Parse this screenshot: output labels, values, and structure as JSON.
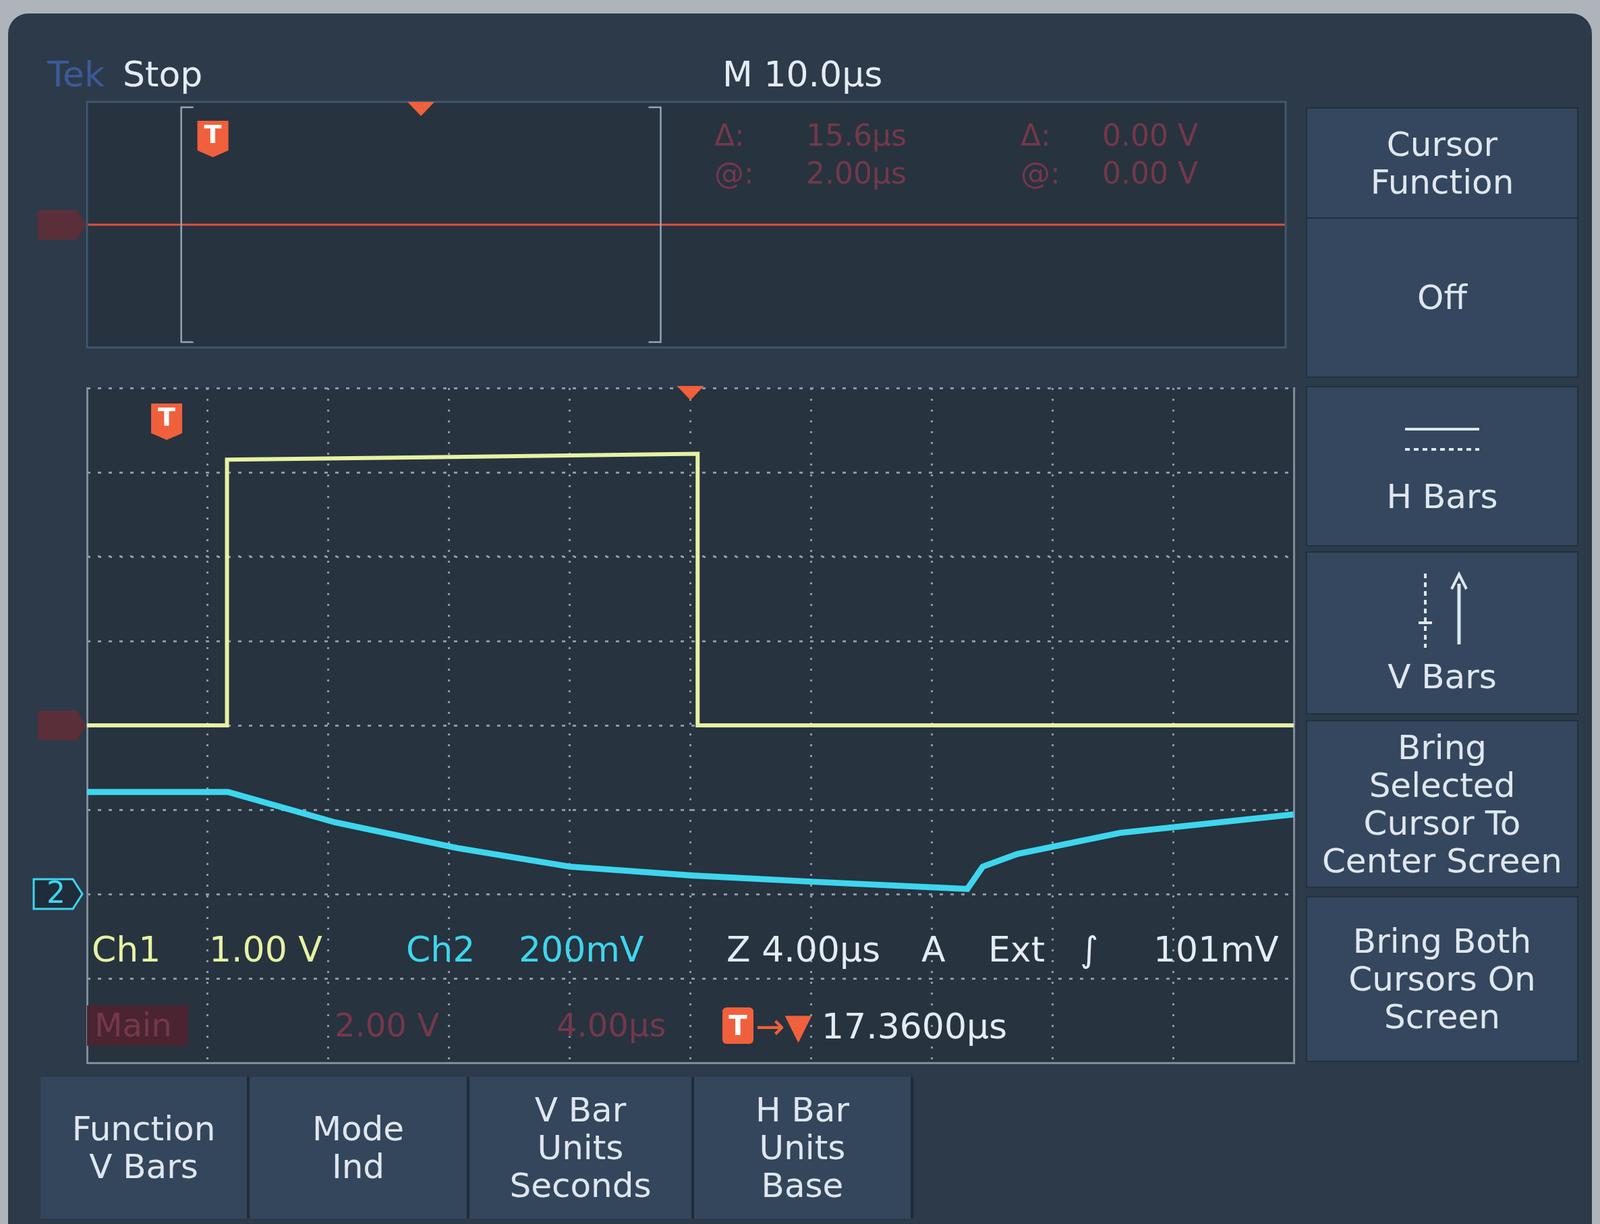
{
  "header": {
    "brand": "Tek",
    "state": "Stop",
    "timebase": "M 10.0µs"
  },
  "cursor_readout": [
    [
      "Δ:",
      "15.6µs",
      "Δ:",
      "0.00 V"
    ],
    [
      "@:",
      "2.00µs",
      "@:",
      "0.00 V"
    ]
  ],
  "trigger_marker": "T",
  "ch2_marker_label": "2",
  "chart_data": [
    {
      "type": "line",
      "xlim": [
        -10.5,
        89.5
      ],
      "ylim": [
        -4,
        4
      ],
      "grid": false,
      "tick_labels": false,
      "trigger": 0,
      "delay": 17.36,
      "ground": 0,
      "zoom_window": [
        -2.64,
        37.36
      ],
      "series": [
        {
          "color": "#e0503c",
          "x": [
            -10.5,
            89.5
          ],
          "values": [
            0,
            0
          ]
        }
      ]
    },
    {
      "type": "line",
      "xlim": [
        -2.64,
        37.36
      ],
      "xticks": [
        -2.64,
        1.36,
        5.36,
        9.36,
        13.36,
        17.36,
        21.36,
        25.36,
        29.36,
        33.36,
        37.36
      ],
      "ylim": [
        -4,
        4
      ],
      "yticks": [
        -4,
        -3,
        -2,
        -1,
        0,
        1,
        2,
        3,
        4
      ],
      "y2lim": [
        -0.4,
        1.2
      ],
      "y2ticks": [
        -0.4,
        -0.2,
        0,
        0.2,
        0.4,
        0.6,
        0.8,
        1.0,
        1.2
      ],
      "grid": true,
      "tick_labels": false,
      "trigger": 0,
      "delay": 17.36,
      "ground": 0,
      "series": [
        {
          "name": "Ch1",
          "color": "#e6f2a2",
          "x": [
            -2.64,
            2.0,
            2.0,
            9.0,
            17.6,
            17.6,
            37.36
          ],
          "values": [
            0,
            0,
            3.15,
            3.18,
            3.22,
            0,
            0
          ]
        },
        {
          "name": "Ch2",
          "color": "#3dd6ee",
          "axis": "y2",
          "x": [
            -2.64,
            2.03,
            5.58,
            9.64,
            13.36,
            17.41,
            21.47,
            26.54,
            27.05,
            28.2,
            31.6,
            37.36
          ],
          "values": [
            0.242,
            0.242,
            0.17,
            0.109,
            0.065,
            0.044,
            0.029,
            0.012,
            0.065,
            0.095,
            0.145,
            0.189
          ]
        }
      ]
    }
  ],
  "channel_scales": [
    "1.00 V",
    "200mV"
  ],
  "zoom_scale": "Z 4.00µs",
  "trigger_info": [
    "A",
    "Ext",
    "∫",
    "101mV"
  ],
  "main_readout": [
    "Main",
    "2.00 V",
    "4.00µs"
  ],
  "delay_readout": [
    "→▼",
    "17.3600µs"
  ],
  "side_menu": [
    [
      "Cursor",
      "Function"
    ],
    [
      "Off"
    ],
    [
      "H Bars"
    ],
    [
      "V Bars"
    ],
    [
      "Bring",
      "Selected",
      "Cursor To",
      "Center Screen"
    ],
    [
      "Bring Both",
      "Cursors On",
      "Screen"
    ]
  ],
  "bottom_menu": [
    [
      "Function",
      "V Bars"
    ],
    [
      "Mode",
      "Ind"
    ],
    [
      "V Bar",
      "Units",
      "Seconds"
    ],
    [
      "H Bar",
      "Units",
      "Base"
    ]
  ]
}
